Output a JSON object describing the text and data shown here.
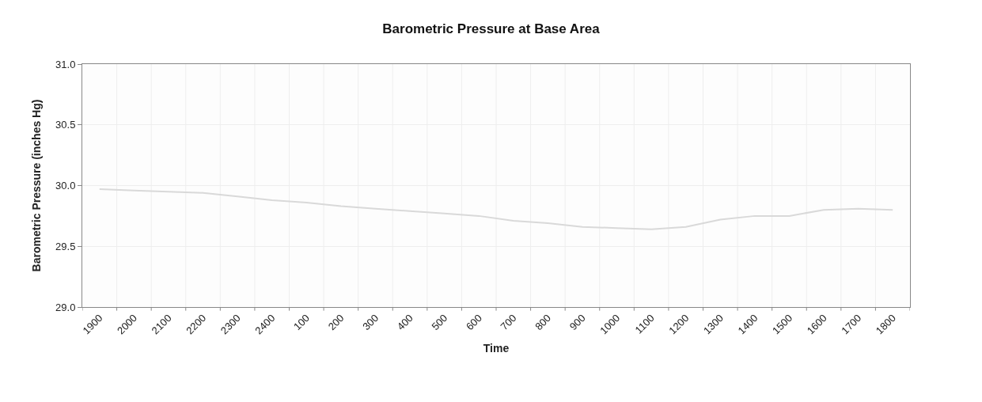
{
  "chart_data": {
    "type": "line",
    "title": "Barometric Pressure at Base Area",
    "xlabel": "Time",
    "ylabel": "Barometric Pressure (inches Hg)",
    "categories": [
      "1900",
      "2000",
      "2100",
      "2200",
      "2300",
      "2400",
      "100",
      "200",
      "300",
      "400",
      "500",
      "600",
      "700",
      "800",
      "900",
      "1000",
      "1100",
      "1200",
      "1300",
      "1400",
      "1500",
      "1600",
      "1700",
      "1800"
    ],
    "series": [
      {
        "color": "#d9d9d9",
        "values": [
          29.97,
          29.96,
          29.95,
          29.94,
          29.91,
          29.88,
          29.86,
          29.83,
          29.81,
          29.79,
          29.77,
          29.75,
          29.71,
          29.69,
          29.66,
          29.65,
          29.64,
          29.66,
          29.72,
          29.75,
          29.75,
          29.8,
          29.81,
          29.8
        ]
      }
    ],
    "ylim": [
      29.0,
      31.0
    ],
    "yticks": [
      {
        "value": 29.0,
        "label": "29.0"
      },
      {
        "value": 29.5,
        "label": "29.5"
      },
      {
        "value": 30.0,
        "label": "30.0"
      },
      {
        "value": 30.5,
        "label": "30.5"
      },
      {
        "value": 31.0,
        "label": "31.0"
      }
    ],
    "grid": true,
    "marker": "none",
    "line_style": "solid"
  }
}
